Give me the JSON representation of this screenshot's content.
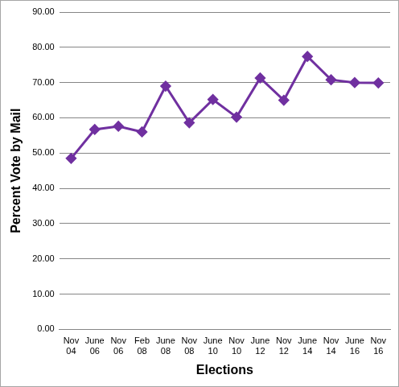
{
  "chart_data": {
    "type": "line",
    "x_label": "Elections",
    "y_label": "Percent Vote by Mail",
    "categories": [
      "Nov 04",
      "June 06",
      "Nov 06",
      "Feb 08",
      "June 08",
      "Nov 08",
      "June 10",
      "Nov 10",
      "June 12",
      "Nov 12",
      "June 14",
      "Nov 14",
      "June 16",
      "Nov 16"
    ],
    "values": [
      48.5,
      56.7,
      57.6,
      56.0,
      69.0,
      58.6,
      65.2,
      60.2,
      71.3,
      65.0,
      77.4,
      70.8,
      70.0,
      69.9
    ],
    "color": "#7030a0",
    "marker": "diamond",
    "ylim": [
      0,
      90
    ],
    "yticks": [
      {
        "value": 0,
        "label": "0.00"
      },
      {
        "value": 10,
        "label": "10.00"
      },
      {
        "value": 20,
        "label": "20.00"
      },
      {
        "value": 30,
        "label": "30.00"
      },
      {
        "value": 40,
        "label": "40.00"
      },
      {
        "value": 50,
        "label": "50.00"
      },
      {
        "value": 60,
        "label": "60.00"
      },
      {
        "value": 70,
        "label": "70.00"
      },
      {
        "value": 80,
        "label": "80.00"
      },
      {
        "value": 90,
        "label": "90.00"
      }
    ],
    "grid": true
  }
}
